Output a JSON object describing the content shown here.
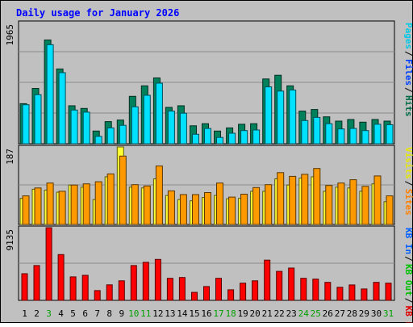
{
  "chart_data": {
    "type": "bar",
    "title": "Daily usage for January 2026",
    "categories": [
      "1",
      "2",
      "3",
      "4",
      "5",
      "6",
      "7",
      "8",
      "9",
      "10",
      "11",
      "12",
      "13",
      "14",
      "15",
      "16",
      "17",
      "18",
      "19",
      "20",
      "21",
      "22",
      "23",
      "24",
      "25",
      "26",
      "27",
      "28",
      "29",
      "30",
      "31"
    ],
    "weekend_days": [
      "3",
      "10",
      "11",
      "17",
      "18",
      "24",
      "25",
      "31"
    ],
    "panels": [
      {
        "id": "hits-files-pages",
        "ymax_label": "1965",
        "ylim": [
          0,
          2300
        ],
        "right_labels": [
          {
            "text": "Pages",
            "color": "#00c8e6"
          },
          {
            "text": "Files",
            "color": "#0040ff"
          },
          {
            "text": "Hits",
            "color": "#006b47"
          }
        ],
        "series": [
          {
            "name": "Hits",
            "color": "#00805b",
            "values": [
              760,
              1050,
              1970,
              1420,
              720,
              670,
              240,
              420,
              450,
              900,
              1100,
              1250,
              690,
              720,
              340,
              380,
              240,
              300,
              370,
              380,
              1230,
              1300,
              1100,
              620,
              650,
              510,
              430,
              460,
              410,
              460,
              430
            ]
          },
          {
            "name": "Files",
            "color": "#00e0ff",
            "values": [
              740,
              930,
              1880,
              1350,
              640,
              600,
              140,
              300,
              350,
              700,
              920,
              1150,
              620,
              580,
              180,
              290,
              120,
              200,
              250,
              260,
              1080,
              1000,
              1020,
              440,
              500,
              380,
              280,
              290,
              250,
              370,
              360
            ]
          }
        ]
      },
      {
        "id": "sites-visits",
        "ymax_label": "187",
        "ylim": [
          0,
          187
        ],
        "right_labels": [
          {
            "text": "Visits",
            "color": "#e8e800"
          },
          {
            "text": "Sites",
            "color": "#ff8000"
          }
        ],
        "series": [
          {
            "name": "Visits",
            "color": "#ffff33",
            "values": [
              63,
              85,
              83,
              78,
              95,
              90,
              60,
              115,
              187,
              90,
              88,
              110,
              70,
              60,
              57,
              65,
              70,
              62,
              63,
              80,
              80,
              110,
              95,
              112,
              115,
              80,
              90,
              88,
              80,
              98,
              55
            ]
          },
          {
            "name": "Sites",
            "color": "#ff9900",
            "values": [
              69,
              88,
              100,
              80,
              95,
              98,
              103,
              122,
              165,
              96,
              93,
              141,
              81,
              72,
              72,
              77,
              100,
              66,
              73,
              89,
              96,
              125,
              116,
              121,
              135,
              94,
              100,
              108,
              92,
              117,
              69
            ]
          }
        ]
      },
      {
        "id": "kbytes",
        "ymax_label": "9135",
        "ylim": [
          0,
          9135
        ],
        "right_labels": [
          {
            "text": "KB In",
            "color": "#0060ff"
          },
          {
            "text": "KB Out",
            "color": "#00c000"
          },
          {
            "text": "KB F",
            "color": "#e00000"
          }
        ],
        "series": [
          {
            "name": "KB F",
            "color": "#ff0000",
            "values": [
              3350,
              4370,
              9135,
              5750,
              2950,
              3150,
              1230,
              1950,
              2460,
              4370,
              4780,
              5150,
              2770,
              2870,
              1000,
              1740,
              2770,
              1330,
              2160,
              2460,
              5050,
              3640,
              4060,
              2770,
              2670,
              2260,
              1640,
              1940,
              1430,
              2260,
              2160
            ]
          }
        ]
      }
    ]
  }
}
